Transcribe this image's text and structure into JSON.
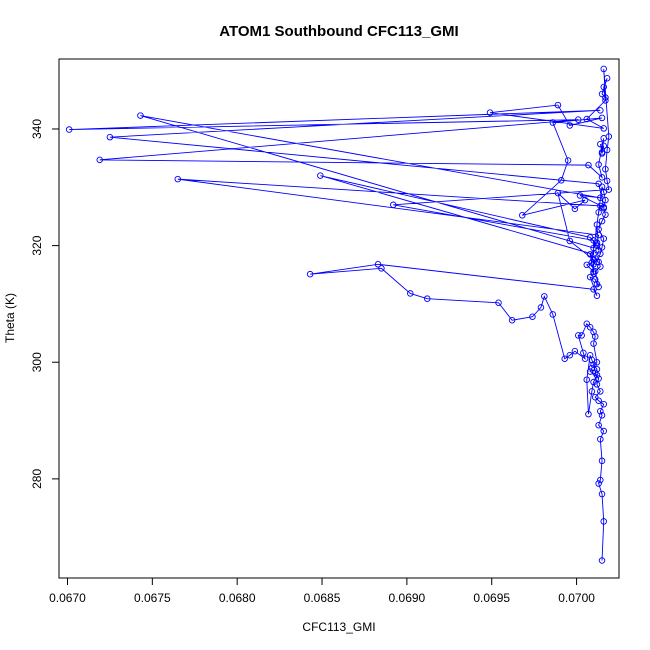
{
  "chart_data": {
    "type": "line",
    "title": "ATOM1 Southbound CFC113_GMI",
    "xlabel": "CFC113_GMI",
    "ylabel": "Theta (K)",
    "xlim": [
      0.06695,
      0.07025
    ],
    "ylim": [
      263,
      352
    ],
    "x_ticks": [
      0.067,
      0.0675,
      0.068,
      0.0685,
      0.069,
      0.0695,
      0.07
    ],
    "x_tick_labels": [
      "0.0670",
      "0.0675",
      "0.0680",
      "0.0685",
      "0.0690",
      "0.0695",
      "0.0700"
    ],
    "y_ticks": [
      280,
      300,
      320,
      340
    ],
    "y_tick_labels": [
      "280",
      "300",
      "320",
      "340"
    ],
    "grid": false,
    "legend": "none",
    "series_color": "#0000ff",
    "series": [
      {
        "x": [
          0.07015,
          0.07016,
          0.07015,
          0.07013,
          0.07014,
          0.07015,
          0.07014,
          0.07016,
          0.07013,
          0.07015,
          0.07014,
          0.07016,
          0.07013,
          0.07011,
          0.07014,
          0.07012,
          0.07013,
          0.07011,
          0.07012,
          0.0701,
          0.07009,
          0.07008,
          0.07006,
          0.07007,
          0.07009,
          0.0701,
          0.07012,
          0.07008,
          0.07009,
          0.07012,
          0.0701,
          0.07011,
          0.0701,
          0.07008,
          0.07006,
          0.07003,
          0.07001,
          0.07004,
          0.07005,
          0.06999,
          0.06996,
          0.06993,
          0.06986,
          0.06981,
          0.06979,
          0.06974,
          0.06962,
          0.06954,
          0.06912,
          0.06902,
          0.06885,
          0.06843,
          0.06883,
          0.0701,
          0.07012,
          0.07008,
          0.07011,
          0.07012,
          0.07013,
          0.07011,
          0.07014,
          0.07013,
          0.07012,
          0.07014,
          0.07015,
          0.07016,
          0.07013,
          0.07015,
          0.07017,
          0.07016,
          0.07017,
          0.07016,
          0.07015,
          0.07009,
          0.07006,
          0.0701,
          0.07008,
          0.07011,
          0.0701,
          0.0701,
          0.0701,
          0.06996,
          0.06989,
          0.06999,
          0.07005,
          0.06968,
          0.06991,
          0.06995,
          0.06986,
          0.07015,
          0.06996,
          0.06989,
          0.06949,
          0.07016,
          0.07006,
          0.07017,
          0.07016,
          0.07018,
          0.07015,
          0.07017,
          0.07016,
          0.07019,
          0.07018,
          0.07017,
          0.07018,
          0.07019,
          0.06892,
          0.0701,
          0.0701,
          0.06849,
          0.07008,
          0.07012,
          0.07013,
          0.07012,
          0.07013,
          0.07014,
          0.06765,
          0.07013,
          0.07012,
          0.0701,
          0.06743,
          0.07014,
          0.07002,
          0.07016,
          0.07013,
          0.06725,
          0.07014,
          0.06701,
          0.07001,
          0.06719,
          0.07007,
          0.07015,
          0.07013,
          0.07016,
          0.07015,
          0.07016,
          0.07015,
          0.07014
        ],
        "y": [
          266,
          272.7,
          277.4,
          279.2,
          279.8,
          283.1,
          286.8,
          288.2,
          289.2,
          290.9,
          291.6,
          292.8,
          293.4,
          294,
          295,
          296.2,
          297.2,
          298.2,
          298.8,
          299.6,
          300.4,
          301.2,
          297,
          291.1,
          295,
          296.6,
          297.8,
          298.4,
          299,
          300,
          303.2,
          304.4,
          305.2,
          306,
          306.6,
          304.6,
          304.6,
          301.6,
          300.6,
          301.9,
          301.2,
          300.6,
          308.2,
          311.3,
          309.4,
          307.8,
          307.2,
          310.2,
          310.9,
          311.8,
          316.1,
          315.1,
          316.8,
          312.5,
          311.4,
          314.6,
          314.2,
          313.4,
          312.9,
          315.6,
          316.4,
          317.2,
          317.2,
          318.6,
          319.7,
          321.2,
          322.8,
          324.2,
          325.3,
          326.4,
          327.8,
          329.2,
          330.1,
          317.1,
          316.7,
          315.5,
          318.5,
          317.8,
          316.8,
          315.2,
          317.6,
          320.8,
          329,
          326.3,
          327.8,
          325.2,
          331.2,
          334.6,
          341.1,
          341.9,
          340.6,
          344.1,
          342.8,
          340.1,
          341.7,
          344.9,
          347.2,
          348.7,
          346,
          345.4,
          350.3,
          338.7,
          336.4,
          333.1,
          331.1,
          329.6,
          327,
          320.9,
          318.5,
          332,
          321.4,
          320,
          319.2,
          323.6,
          325.7,
          326.8,
          331.4,
          321.8,
          320.5,
          319.6,
          342.3,
          328.2,
          328.6,
          326.6,
          330.6,
          338.6,
          343.2,
          339.9,
          341.6,
          334.7,
          333.8,
          331.7,
          333.9,
          338.4,
          335.8,
          337.1,
          336,
          337.4
        ]
      }
    ]
  }
}
